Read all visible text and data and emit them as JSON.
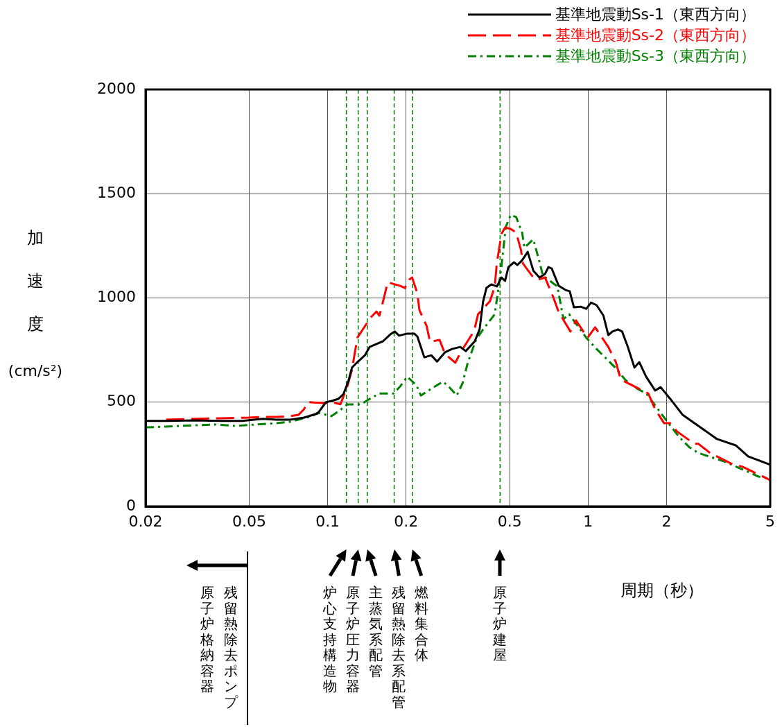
{
  "chart_data": {
    "type": "line",
    "xlabel": "周期（秒）",
    "ylabel": "加速度 (cm/s²)",
    "log": "x",
    "xlim": [
      0.02,
      5
    ],
    "xticks": [
      0.02,
      0.05,
      0.1,
      0.2,
      0.5,
      1,
      2,
      5
    ],
    "ylim": [
      0,
      2000
    ],
    "yticks": [
      0,
      500,
      1000,
      1500,
      2000
    ],
    "grid": true,
    "legend": "top right",
    "series": [
      {
        "name": "基準地震動Ss-1（東西方向）",
        "color": "#000000",
        "line_style": "solid",
        "x": [
          0.02,
          0.024,
          0.0306,
          0.0391,
          0.0469,
          0.0563,
          0.0636,
          0.0718,
          0.0811,
          0.0916,
          0.0985,
          0.1035,
          0.11,
          0.115,
          0.12,
          0.124,
          0.13,
          0.139,
          0.145,
          0.154,
          0.163,
          0.174,
          0.181,
          0.188,
          0.202,
          0.215,
          0.221,
          0.235,
          0.25,
          0.263,
          0.282,
          0.3,
          0.323,
          0.339,
          0.367,
          0.383,
          0.395,
          0.407,
          0.425,
          0.446,
          0.465,
          0.48,
          0.494,
          0.519,
          0.535,
          0.558,
          0.586,
          0.616,
          0.65,
          0.683,
          0.704,
          0.725,
          0.771,
          0.819,
          0.85,
          0.882,
          0.937,
          0.984,
          1.026,
          1.078,
          1.145,
          1.195,
          1.24,
          1.302,
          1.35,
          1.417,
          1.506,
          1.572,
          1.67,
          1.808,
          1.898,
          2.066,
          2.306,
          2.604,
          3.126,
          3.686,
          4.112,
          5
        ],
        "values": [
          410,
          410,
          413,
          410,
          410,
          420,
          416,
          416,
          426,
          446,
          500,
          506,
          516,
          539,
          599,
          666,
          692,
          725,
          765,
          779,
          792,
          825,
          839,
          819,
          829,
          829,
          815,
          715,
          725,
          695,
          739,
          755,
          765,
          745,
          792,
          849,
          982,
          1048,
          1065,
          1055,
          1098,
          1082,
          1148,
          1171,
          1158,
          1181,
          1221,
          1131,
          1098,
          1115,
          1148,
          1141,
          1058,
          1038,
          1032,
          955,
          958,
          948,
          978,
          965,
          915,
          822,
          839,
          849,
          839,
          769,
          666,
          692,
          622,
          556,
          572,
          516,
          439,
          393,
          323,
          293,
          240,
          200
        ]
      },
      {
        "name": "基準地震動Ss-2（東西方向）",
        "color": "#ff0000",
        "line_style": "dashed",
        "x": [
          0.024,
          0.0306,
          0.0391,
          0.0498,
          0.0563,
          0.0636,
          0.0718,
          0.0772,
          0.0811,
          0.0841,
          0.0985,
          0.1035,
          0.112,
          0.119,
          0.124,
          0.13,
          0.146,
          0.154,
          0.158,
          0.165,
          0.17,
          0.19,
          0.198,
          0.206,
          0.211,
          0.221,
          0.225,
          0.24,
          0.247,
          0.269,
          0.282,
          0.309,
          0.325,
          0.365,
          0.378,
          0.42,
          0.438,
          0.446,
          0.465,
          0.48,
          0.504,
          0.529,
          0.552,
          0.562,
          0.616,
          0.642,
          0.683,
          0.734,
          0.771,
          0.855,
          0.898,
          0.995,
          1.064,
          1.195,
          1.278,
          1.334,
          1.417,
          1.701,
          1.808,
          1.957,
          2.066,
          2.196,
          2.558,
          2.652,
          2.942,
          3.532,
          3.916,
          4.876,
          5
        ],
        "values": [
          416,
          420,
          423,
          426,
          429,
          429,
          433,
          439,
          466,
          500,
          495,
          500,
          490,
          576,
          656,
          809,
          905,
          935,
          915,
          1008,
          1075,
          1058,
          1048,
          1088,
          1098,
          1022,
          942,
          865,
          789,
          799,
          732,
          689,
          742,
          842,
          922,
          985,
          1055,
          1165,
          1308,
          1338,
          1331,
          1314,
          1231,
          1165,
          1098,
          1088,
          1098,
          1005,
          932,
          839,
          892,
          809,
          859,
          765,
          692,
          609,
          592,
          542,
          466,
          399,
          399,
          359,
          300,
          300,
          256,
          206,
          190,
          133,
          126
        ]
      },
      {
        "name": "基準地震動Ss-3（東西方向）",
        "color": "#008000",
        "line_style": "dotted",
        "x": [
          0.02,
          0.024,
          0.0306,
          0.0368,
          0.0442,
          0.053,
          0.0636,
          0.0718,
          0.0811,
          0.0872,
          0.0916,
          0.1035,
          0.11,
          0.119,
          0.134,
          0.142,
          0.158,
          0.179,
          0.19,
          0.202,
          0.219,
          0.228,
          0.246,
          0.277,
          0.291,
          0.313,
          0.329,
          0.345,
          0.371,
          0.395,
          0.438,
          0.454,
          0.465,
          0.483,
          0.504,
          0.529,
          0.558,
          0.569,
          0.616,
          0.65,
          0.67,
          0.762,
          0.804,
          0.845,
          0.984,
          1.078,
          1.27,
          1.392,
          1.506,
          1.67,
          1.83,
          2.005,
          2.236,
          2.45,
          2.652,
          3.324,
          3.99,
          4.506,
          5
        ],
        "values": [
          379,
          383,
          389,
          393,
          386,
          393,
          399,
          406,
          423,
          433,
          450,
          433,
          456,
          489,
          489,
          509,
          542,
          542,
          576,
          622,
          582,
          532,
          559,
          599,
          576,
          532,
          589,
          689,
          799,
          849,
          922,
          1060,
          1155,
          1341,
          1398,
          1388,
          1314,
          1241,
          1281,
          1175,
          1108,
          1055,
          898,
          922,
          809,
          755,
          666,
          606,
          572,
          542,
          476,
          409,
          333,
          283,
          256,
          216,
          173,
          143,
          133
        ]
      }
    ],
    "ref_lines": [
      {
        "axis": "x",
        "value": 0.118,
        "color": "#008000",
        "line_style": "dashed"
      },
      {
        "axis": "x",
        "value": 0.131,
        "color": "#008000",
        "line_style": "dashed"
      },
      {
        "axis": "x",
        "value": 0.142,
        "color": "#008000",
        "line_style": "dashed"
      },
      {
        "axis": "x",
        "value": 0.18,
        "color": "#008000",
        "line_style": "dashed"
      },
      {
        "axis": "x",
        "value": 0.212,
        "color": "#008000",
        "line_style": "dashed"
      },
      {
        "axis": "x",
        "value": 0.459,
        "color": "#008000",
        "line_style": "dashed"
      }
    ],
    "annotations": [
      "残留熱除去ポンプ",
      "原子炉格納容器",
      "炉心支持構造物",
      "原子炉圧力容器",
      "主蒸気系配管",
      "残留熱除去系配管",
      "燃料集合体",
      "原子炉建屋"
    ]
  }
}
